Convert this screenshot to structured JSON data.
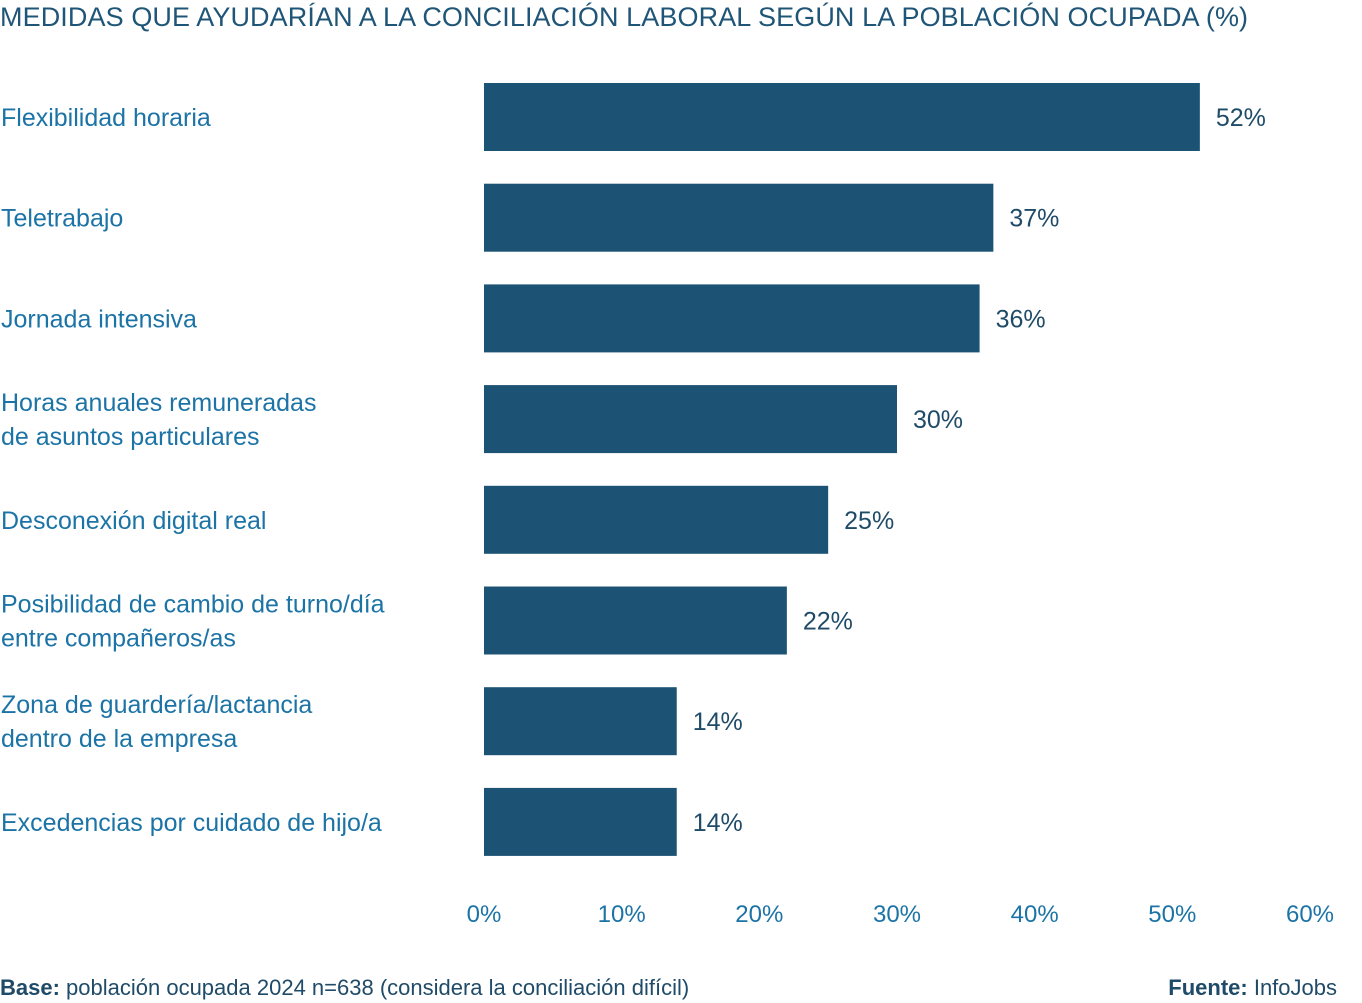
{
  "title": "MEDIDAS QUE AYUDARÍAN A LA CONCILIACIÓN LABORAL SEGÚN LA POBLACIÓN OCUPADA (%)",
  "colors": {
    "bar": "#1c5375",
    "category_text": "#1c73a6",
    "value_text": "#1f4b68",
    "title_text": "#1f5577"
  },
  "chart_data": {
    "type": "bar",
    "orientation": "horizontal",
    "title": "MEDIDAS QUE AYUDARÍAN A LA CONCILIACIÓN LABORAL SEGÚN LA POBLACIÓN OCUPADA (%)",
    "categories": [
      [
        "Flexibilidad horaria"
      ],
      [
        "Teletrabajo"
      ],
      [
        "Jornada intensiva"
      ],
      [
        "Horas anuales remuneradas",
        "de asuntos particulares"
      ],
      [
        "Desconexión digital real"
      ],
      [
        "Posibilidad de cambio de turno/día",
        "entre compañeros/as"
      ],
      [
        "Zona de guardería/lactancia",
        "dentro de la empresa"
      ],
      [
        "Excedencias por cuidado de hijo/a"
      ]
    ],
    "values": [
      52,
      37,
      36,
      30,
      25,
      22,
      14,
      14
    ],
    "value_labels": [
      "52%",
      "37%",
      "36%",
      "30%",
      "25%",
      "22%",
      "14%",
      "14%"
    ],
    "xlim": [
      0,
      60
    ],
    "x_ticks": [
      0,
      10,
      20,
      30,
      40,
      50,
      60
    ],
    "x_tick_labels": [
      "0%",
      "10%",
      "20%",
      "30%",
      "40%",
      "50%",
      "60%"
    ],
    "grid": false,
    "legend": "none"
  },
  "footer": {
    "base_label": "Base:",
    "base_text": " población ocupada 2024 n=638 (considera la conciliación difícil)",
    "source_label": "Fuente:",
    "source_text": " InfoJobs"
  }
}
